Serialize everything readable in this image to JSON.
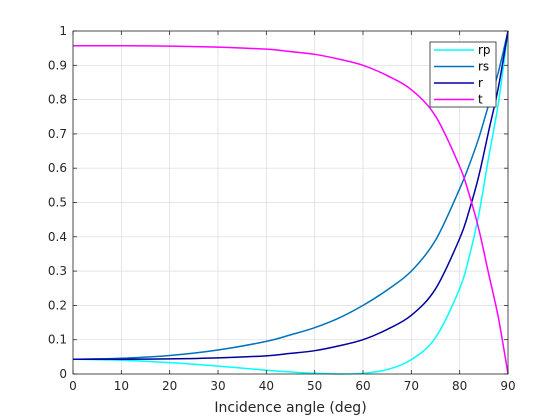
{
  "chart_data": {
    "type": "line",
    "xlabel": "Incidence angle (deg)",
    "ylabel": "",
    "title": "",
    "xlim": [
      0,
      90
    ],
    "ylim": [
      0,
      1
    ],
    "x_ticks": [
      "0",
      "10",
      "20",
      "30",
      "40",
      "50",
      "60",
      "70",
      "80",
      "90"
    ],
    "y_ticks": [
      "0",
      "0.1",
      "0.2",
      "0.3",
      "0.4",
      "0.5",
      "0.6",
      "0.7",
      "0.8",
      "0.9",
      "1"
    ],
    "grid": true,
    "legend_position": "top-right",
    "x": [
      0,
      10,
      20,
      30,
      40,
      45,
      50,
      55,
      60,
      65,
      70,
      75,
      80,
      82,
      84,
      86,
      88,
      90
    ],
    "series": [
      {
        "name": "rp",
        "color": "#00ffff",
        "values": [
          0.043,
          0.04,
          0.033,
          0.023,
          0.011,
          0.006,
          0.002,
          0.0,
          0.002,
          0.013,
          0.042,
          0.106,
          0.249,
          0.343,
          0.468,
          0.632,
          0.789,
          1.0
        ]
      },
      {
        "name": "rs",
        "color": "#0072bd",
        "values": [
          0.043,
          0.046,
          0.054,
          0.07,
          0.095,
          0.114,
          0.135,
          0.163,
          0.2,
          0.245,
          0.3,
          0.39,
          0.54,
          0.61,
          0.69,
          0.785,
          0.88,
          1.0
        ]
      },
      {
        "name": "r",
        "color": "#0000a0",
        "values": [
          0.043,
          0.043,
          0.044,
          0.047,
          0.053,
          0.06,
          0.068,
          0.082,
          0.1,
          0.13,
          0.171,
          0.248,
          0.395,
          0.478,
          0.58,
          0.708,
          0.835,
          1.0
        ]
      },
      {
        "name": "t",
        "color": "#ff00ff",
        "values": [
          0.957,
          0.957,
          0.956,
          0.953,
          0.947,
          0.94,
          0.932,
          0.918,
          0.9,
          0.87,
          0.829,
          0.752,
          0.605,
          0.522,
          0.42,
          0.292,
          0.165,
          0.0
        ]
      }
    ]
  }
}
